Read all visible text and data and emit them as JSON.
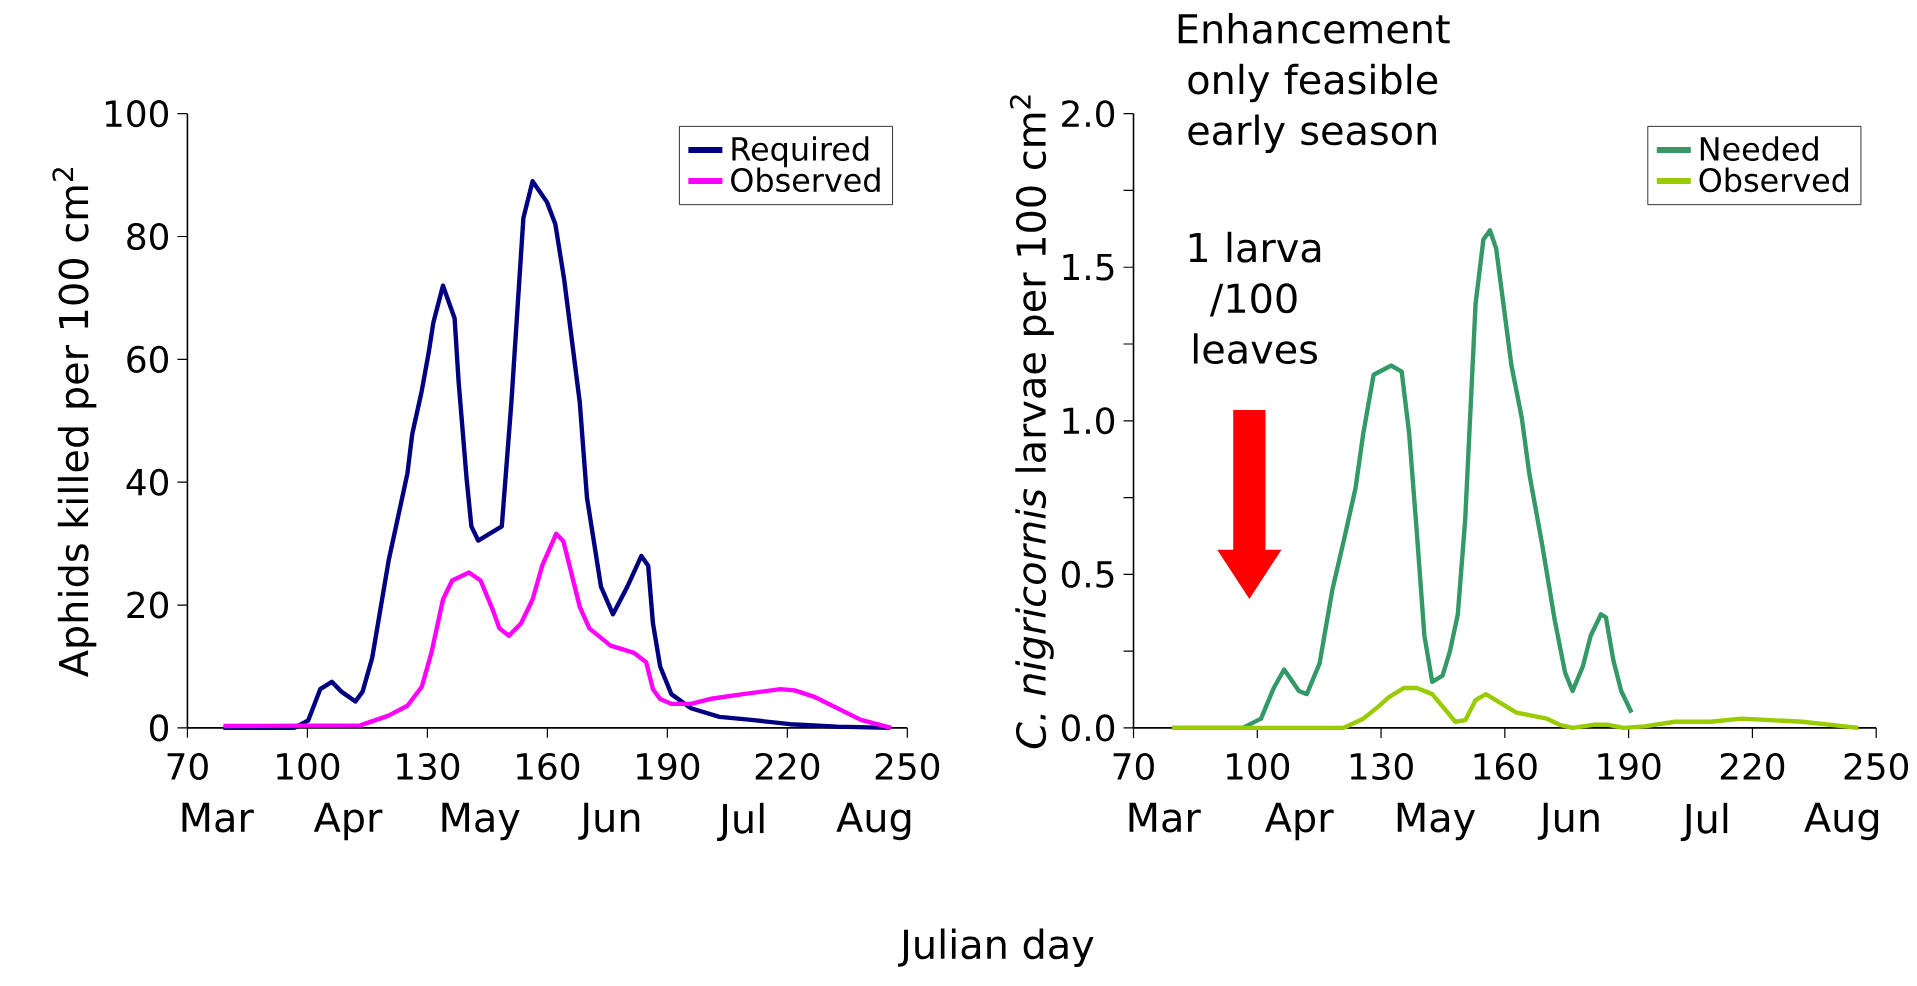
{
  "chart_data": [
    {
      "type": "line",
      "ylabel": "Aphids killed per 100 cm$^{2}$",
      "xlabel": "Julian day",
      "xlim": [
        70,
        250
      ],
      "xticks": [
        70,
        100,
        130,
        160,
        190,
        220,
        250
      ],
      "ylim": [
        0,
        100
      ],
      "yticks": [
        0,
        20,
        40,
        60,
        80,
        100
      ],
      "legend": "top right",
      "marker": "none",
      "line_style": "solid",
      "grid": false,
      "annotations": [
        "Mar",
        "Apr",
        "May",
        "Jun",
        "Jul",
        "Aug"
      ],
      "series": [
        {
          "name": "Required",
          "color": "#000080",
          "x": [
            79,
            93.2,
            96.7,
            100.2,
            103.2,
            106.1,
            108.5,
            112,
            113.8,
            116.2,
            120.3,
            125,
            126.2,
            128.6,
            130.3,
            131.5,
            133.9,
            136.8,
            137.8,
            139.8,
            141,
            142.7,
            148.6,
            151,
            154,
            156.3,
            159.9,
            162,
            164.2,
            168.1,
            169.9,
            173.4,
            176.4,
            180,
            183.5,
            185.2,
            186.4,
            188.2,
            191,
            195.9,
            203,
            211,
            220.7,
            232.5,
            245.5
          ],
          "values": [
            0,
            0,
            0,
            1.2,
            6.3,
            7.5,
            5.9,
            4.3,
            5.9,
            11.4,
            27.2,
            41.4,
            47.8,
            54.9,
            61,
            66,
            72,
            66.7,
            56.4,
            40.6,
            32.8,
            30.5,
            32.8,
            53,
            83,
            89,
            85.6,
            82,
            73,
            53,
            37.5,
            23,
            18.5,
            23,
            28,
            26.4,
            17,
            10,
            5.5,
            3.2,
            1.8,
            1.3,
            0.6,
            0.2,
            0
          ]
        },
        {
          "name": "Observed",
          "color": "#ff00ff",
          "x": [
            79,
            113.2,
            120.3,
            125,
            128.6,
            131,
            133.9,
            136.2,
            140.4,
            143.3,
            146.3,
            148,
            150.4,
            153.4,
            156.3,
            158.7,
            162.2,
            164,
            165.8,
            168.1,
            170.5,
            175.8,
            181.7,
            184.7,
            186.4,
            188.2,
            191.1,
            195.9,
            200.6,
            208.9,
            218.3,
            221.8,
            226.6,
            238.4,
            246
          ],
          "values": [
            0.3,
            0.4,
            2,
            3.6,
            6.7,
            12.2,
            20.9,
            24,
            25.3,
            24,
            19.3,
            16.2,
            15,
            17,
            20.9,
            26.4,
            31.6,
            30.4,
            25.7,
            19.7,
            16.2,
            13.4,
            12.2,
            10.7,
            6.3,
            4.7,
            3.9,
            3.9,
            4.7,
            5.5,
            6.3,
            6.1,
            5.1,
            1.3,
            0
          ]
        }
      ]
    },
    {
      "type": "line",
      "ylabel": "*C. nigricornis* larvae per 100 cm$^{2}$",
      "xlim": [
        70,
        250
      ],
      "xticks": [
        70,
        100,
        130,
        160,
        190,
        220,
        250
      ],
      "ylim": [
        0,
        2
      ],
      "yticks": [
        {
          "value": 0,
          "label": "0.0"
        },
        {
          "value": 0.25,
          "label": null
        },
        {
          "value": 0.5,
          "label": "0.5"
        },
        {
          "value": 0.75,
          "label": null
        },
        {
          "value": 1,
          "label": "1.0"
        },
        {
          "value": 1.25,
          "label": null
        },
        {
          "value": 1.5,
          "label": "1.5"
        },
        {
          "value": 1.75,
          "label": null
        },
        {
          "value": 2,
          "label": "2.0"
        }
      ],
      "legend": "top right",
      "marker": "none",
      "line_style": "solid",
      "grid": false,
      "annotations": [
        "Mar",
        "Apr",
        "May",
        "Jun",
        "Jul",
        "Aug",
        "Enhancement only feasible early season",
        "1 larva /100 leaves"
      ],
      "series": [
        {
          "name": "Needed",
          "color": "#339966",
          "x": [
            79.3,
            89.8,
            96.5,
            100.9,
            104,
            106.5,
            110.1,
            112,
            115.1,
            118.2,
            121.3,
            123.8,
            125.7,
            128.2,
            132.5,
            135,
            136.8,
            138.7,
            140.5,
            142.4,
            144.9,
            146.7,
            148.6,
            150.4,
            152.9,
            154.8,
            156.4,
            157.9,
            161.6,
            164.1,
            165.9,
            169,
            172.1,
            174.6,
            176.4,
            178.9,
            180.8,
            183.3,
            184.5,
            186.3,
            188.2,
            190.7
          ],
          "values": [
            0,
            0,
            0,
            0.03,
            0.13,
            0.19,
            0.12,
            0.11,
            0.21,
            0.45,
            0.63,
            0.78,
            0.96,
            1.15,
            1.18,
            1.16,
            0.96,
            0.63,
            0.3,
            0.15,
            0.17,
            0.25,
            0.37,
            0.68,
            1.38,
            1.59,
            1.62,
            1.56,
            1.18,
            1.01,
            0.83,
            0.6,
            0.35,
            0.18,
            0.12,
            0.2,
            0.3,
            0.37,
            0.36,
            0.22,
            0.12,
            0.05
          ]
        },
        {
          "name": "Observed",
          "color": "#99cc00",
          "x": [
            79.3,
            120.8,
            125.7,
            129.4,
            131.9,
            135.6,
            138.7,
            142.4,
            145.5,
            148,
            150.4,
            152.9,
            155.4,
            159.1,
            162.8,
            166.5,
            170.2,
            173.3,
            176.4,
            181.4,
            185.1,
            188.8,
            193.8,
            201.2,
            209.9,
            217.3,
            232.1,
            245.7
          ],
          "values": [
            0,
            0,
            0.03,
            0.07,
            0.1,
            0.13,
            0.13,
            0.11,
            0.06,
            0.02,
            0.025,
            0.09,
            0.11,
            0.08,
            0.05,
            0.04,
            0.03,
            0.01,
            0,
            0.01,
            0.01,
            0,
            0.005,
            0.02,
            0.02,
            0.03,
            0.02,
            0
          ]
        }
      ]
    }
  ]
}
